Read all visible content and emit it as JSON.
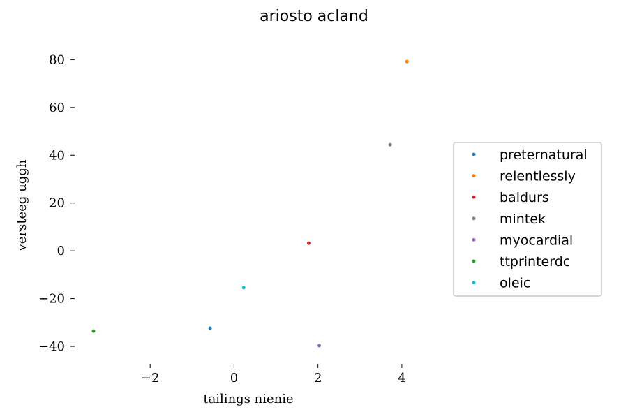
{
  "chart_data": {
    "type": "scatter",
    "title": "ariosto acland",
    "xlabel": "tailings nienie",
    "ylabel": "versteeg uggh",
    "xlim": [
      -3.7,
      4.6
    ],
    "ylim": [
      -47,
      88
    ],
    "xticks": [
      -2,
      0,
      2,
      4
    ],
    "yticks": [
      -40,
      -20,
      0,
      20,
      40,
      60,
      80
    ],
    "xtick_labels": [
      "−2",
      "0",
      "2",
      "4"
    ],
    "ytick_labels": [
      "−40",
      "−20",
      "0",
      "20",
      "40",
      "60",
      "80"
    ],
    "grid": false,
    "legend_position": "center-right",
    "series": [
      {
        "name": "preternatural",
        "color": "#1f77b4",
        "x": [
          -0.57
        ],
        "y": [
          -32.4
        ]
      },
      {
        "name": "relentlessly",
        "color": "#ff7f0e",
        "x": [
          4.12
        ],
        "y": [
          79.2
        ]
      },
      {
        "name": "baldurs",
        "color": "#d62728",
        "x": [
          1.78
        ],
        "y": [
          3.2
        ]
      },
      {
        "name": "mintek",
        "color": "#7f7f7f",
        "x": [
          3.72
        ],
        "y": [
          44.4
        ]
      },
      {
        "name": "myocardial",
        "color": "#9467bd",
        "x": [
          2.03
        ],
        "y": [
          -39.7
        ]
      },
      {
        "name": "ttprinterdc",
        "color": "#2ca02c",
        "x": [
          -3.35
        ],
        "y": [
          -33.6
        ]
      },
      {
        "name": "oleic",
        "color": "#17becf",
        "x": [
          0.23
        ],
        "y": [
          -15.4
        ]
      }
    ]
  }
}
